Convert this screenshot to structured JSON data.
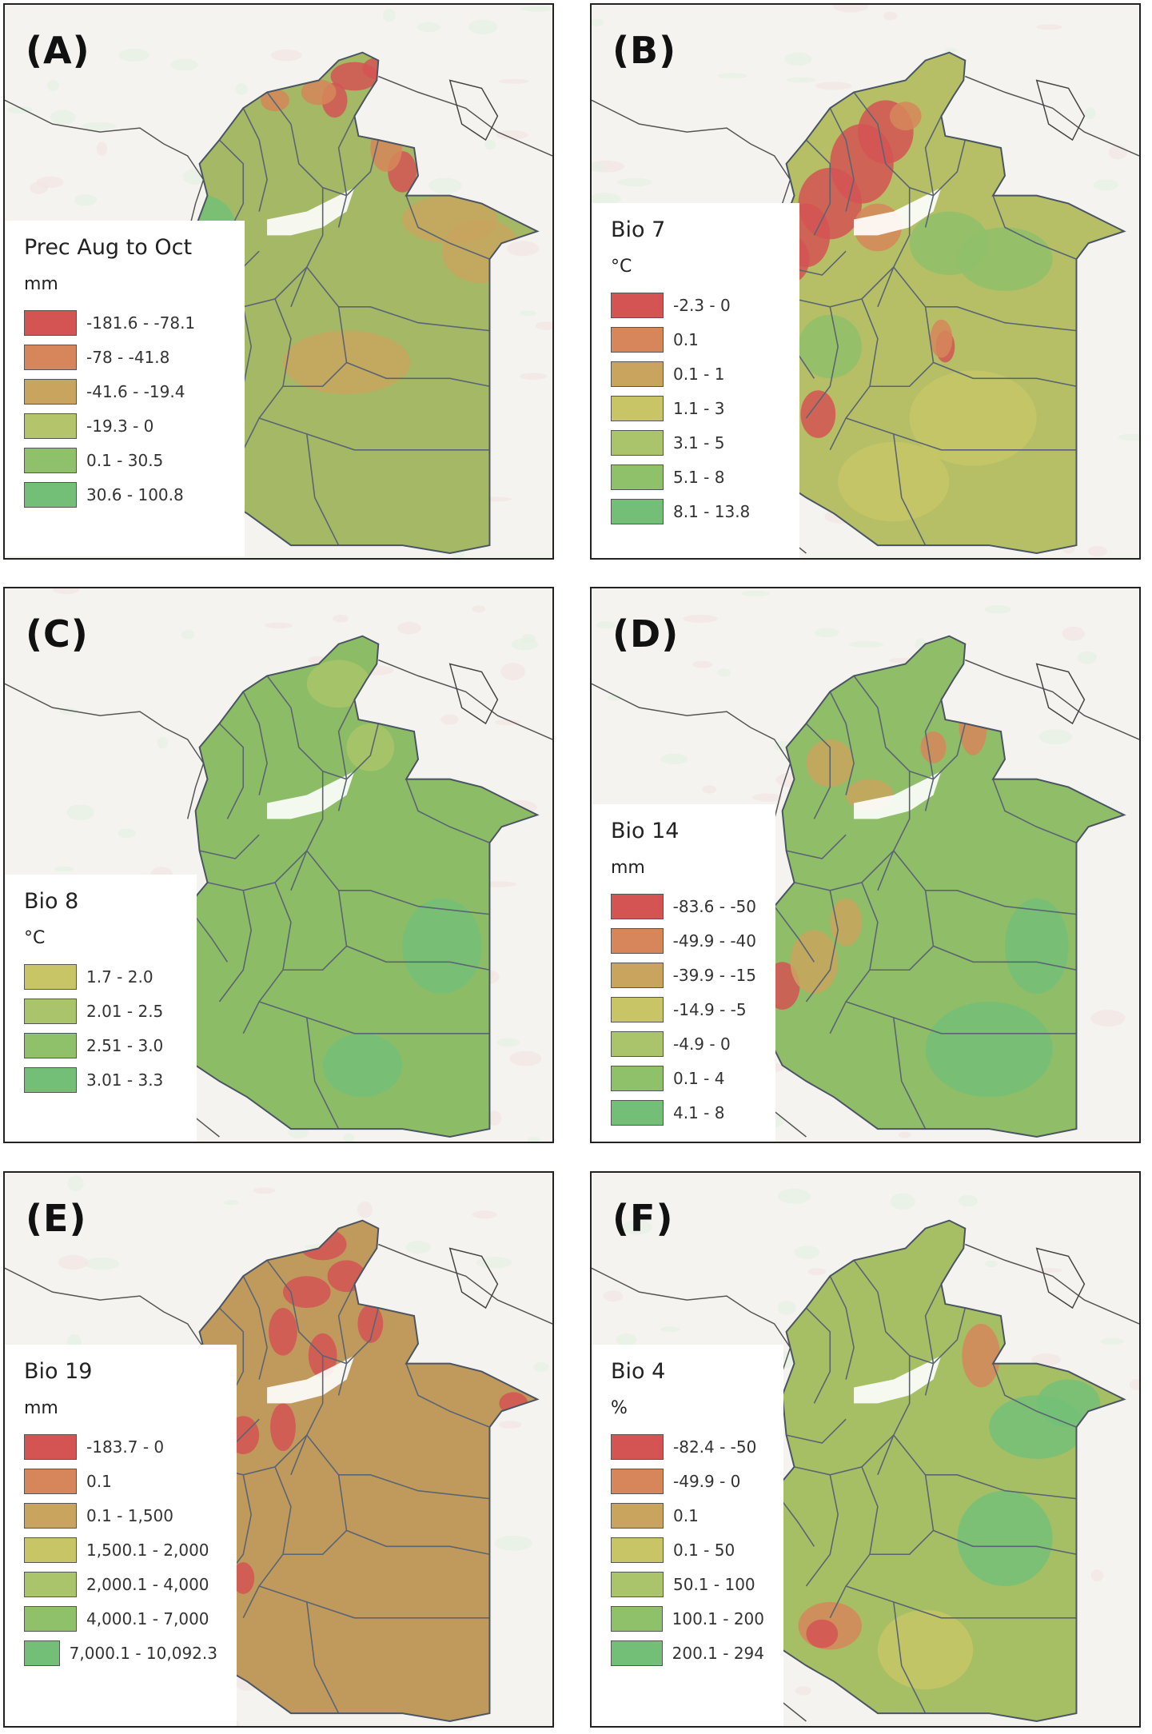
{
  "colors": {
    "red": "#d45454",
    "orange": "#d6865a",
    "tan": "#c9a45e",
    "yellowolive": "#c7c566",
    "lightgreen": "#a9c46a",
    "green": "#8fc06a",
    "teal": "#74bf78"
  },
  "panels": [
    {
      "label": "(A)",
      "title": "Prec Aug to Oct",
      "unit": "mm",
      "fill": "#a4b866",
      "legend": [
        {
          "text": "-181.6 - -78.1",
          "color": "#d45454"
        },
        {
          "text": "-78 - -41.8",
          "color": "#d6865a"
        },
        {
          "text": "-41.6 - -19.4",
          "color": "#c9a45e"
        },
        {
          "text": "-19.3 - 0",
          "color": "#b4c46a"
        },
        {
          "text": "0.1 - 30.5",
          "color": "#8fc06a"
        },
        {
          "text": "30.6 - 100.8",
          "color": "#74bf78"
        }
      ]
    },
    {
      "label": "(B)",
      "title": "Bio 7",
      "unit": "°C",
      "fill": "#b7bf66",
      "legend": [
        {
          "text": "-2.3 - 0",
          "color": "#d45454"
        },
        {
          "text": "0.1",
          "color": "#d6865a"
        },
        {
          "text": "0.1 - 1",
          "color": "#c9a45e"
        },
        {
          "text": "1.1 - 3",
          "color": "#c7c566"
        },
        {
          "text": "3.1 - 5",
          "color": "#a9c46a"
        },
        {
          "text": "5.1 - 8",
          "color": "#8fc06a"
        },
        {
          "text": "8.1 - 13.8",
          "color": "#74bf78"
        }
      ]
    },
    {
      "label": "(C)",
      "title": "Bio 8",
      "unit": "°C",
      "fill": "#8cbd66",
      "legend": [
        {
          "text": "1.7 - 2.0",
          "color": "#c7c566"
        },
        {
          "text": "2.01 - 2.5",
          "color": "#a9c46a"
        },
        {
          "text": "2.51 - 3.0",
          "color": "#8fc06a"
        },
        {
          "text": "3.01 - 3.3",
          "color": "#74bf78"
        }
      ]
    },
    {
      "label": "(D)",
      "title": "Bio 14",
      "unit": "mm",
      "fill": "#8fbd68",
      "legend": [
        {
          "text": "-83.6 - -50",
          "color": "#d45454"
        },
        {
          "text": "-49.9 - -40",
          "color": "#d6865a"
        },
        {
          "text": "-39.9 - -15",
          "color": "#c9a45e"
        },
        {
          "text": "-14.9 - -5",
          "color": "#c7c566"
        },
        {
          "text": "-4.9 - 0",
          "color": "#a9c46a"
        },
        {
          "text": "0.1 - 4",
          "color": "#8fc06a"
        },
        {
          "text": "4.1 - 8",
          "color": "#74bf78"
        }
      ]
    },
    {
      "label": "(E)",
      "title": "Bio 19",
      "unit": "mm",
      "fill": "#c09a5c",
      "legend": [
        {
          "text": "-183.7 - 0",
          "color": "#d45454"
        },
        {
          "text": "0.1",
          "color": "#d6865a"
        },
        {
          "text": "0.1 - 1,500",
          "color": "#c9a45e"
        },
        {
          "text": "1,500.1 - 2,000",
          "color": "#c7c566"
        },
        {
          "text": "2,000.1 - 4,000",
          "color": "#a9c46a"
        },
        {
          "text": "4,000.1 - 7,000",
          "color": "#8fc06a"
        },
        {
          "text": "7,000.1 - 10,092.3",
          "color": "#74bf78"
        }
      ]
    },
    {
      "label": "(F)",
      "title": "Bio 4",
      "unit": "%",
      "fill": "#a7bf64",
      "legend": [
        {
          "text": "-82.4 - -50",
          "color": "#d45454"
        },
        {
          "text": "-49.9 - 0",
          "color": "#d6865a"
        },
        {
          "text": "0.1",
          "color": "#c9a45e"
        },
        {
          "text": "0.1 - 50",
          "color": "#c7c566"
        },
        {
          "text": "50.1 - 100",
          "color": "#a9c46a"
        },
        {
          "text": "100.1 - 200",
          "color": "#8fc06a"
        },
        {
          "text": "200.1 - 294",
          "color": "#74bf78"
        }
      ]
    }
  ]
}
